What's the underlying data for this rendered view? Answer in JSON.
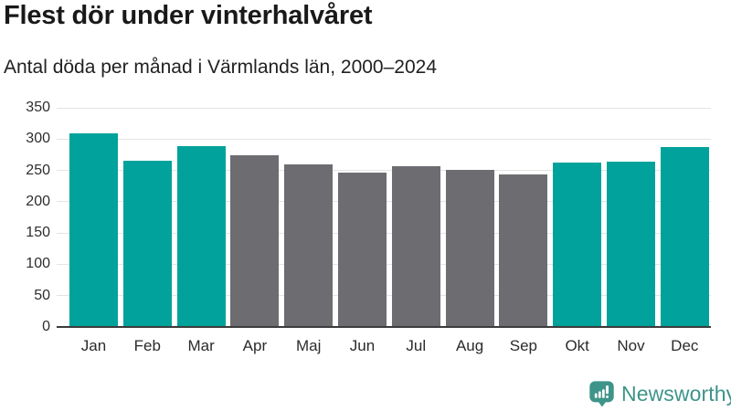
{
  "header": {
    "title": "Flest dör under vinterhalvåret",
    "subtitle": "Antal döda per månad i Värmlands län, 2000–2024"
  },
  "chart_data": {
    "type": "bar",
    "title": "Flest dör under vinterhalvåret",
    "subtitle": "Antal döda per månad i Värmlands län, 2000–2024",
    "categories": [
      "Jan",
      "Feb",
      "Mar",
      "Apr",
      "Maj",
      "Jun",
      "Jul",
      "Aug",
      "Sep",
      "Okt",
      "Nov",
      "Dec"
    ],
    "values": [
      309,
      266,
      289,
      274,
      259,
      246,
      257,
      251,
      244,
      262,
      264,
      288
    ],
    "bar_color_keys": [
      "teal",
      "teal",
      "teal",
      "gray",
      "gray",
      "gray",
      "gray",
      "gray",
      "gray",
      "teal",
      "teal",
      "teal"
    ],
    "xlabel": "",
    "ylabel": "",
    "ylim": [
      0,
      350
    ],
    "yticks": [
      0,
      50,
      100,
      150,
      200,
      250,
      300,
      350
    ],
    "grid": true,
    "legend": false,
    "legend_note": "teal = winter half-year months, gray = summer half-year months"
  },
  "colors": {
    "teal": "#00a29b",
    "gray": "#6c6c71",
    "gridline": "#e4e4e4",
    "axis_line": "#3b3b3b",
    "title_text": "#191919",
    "logo_green": "#3e9489"
  },
  "footer": {
    "brand": "Newsworthy",
    "logo_icon": "bar-chart-speech-bubble-icon"
  }
}
